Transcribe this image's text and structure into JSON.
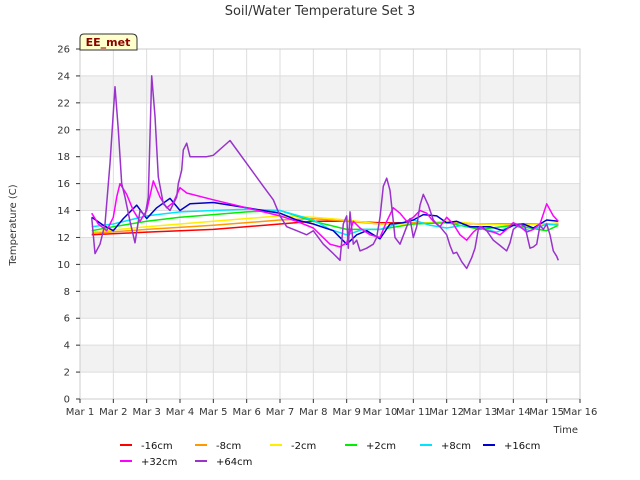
{
  "chart_data": {
    "type": "line",
    "title": "Soil/Water Temperature Set 3",
    "xlabel": "Time",
    "ylabel": "Temperature (C)",
    "ylim": [
      0,
      26
    ],
    "xlim": [
      1,
      16
    ],
    "yticks": [
      0,
      2,
      4,
      6,
      8,
      10,
      12,
      14,
      16,
      18,
      20,
      22,
      24,
      26
    ],
    "xticks": [
      {
        "v": 1,
        "label": "Mar 1"
      },
      {
        "v": 2,
        "label": "Mar 2"
      },
      {
        "v": 3,
        "label": "Mar 3"
      },
      {
        "v": 4,
        "label": "Mar 4"
      },
      {
        "v": 5,
        "label": "Mar 5"
      },
      {
        "v": 6,
        "label": "Mar 6"
      },
      {
        "v": 7,
        "label": "Mar 7"
      },
      {
        "v": 8,
        "label": "Mar 8"
      },
      {
        "v": 9,
        "label": "Mar 9"
      },
      {
        "v": 10,
        "label": "Mar 10"
      },
      {
        "v": 11,
        "label": "Mar 11"
      },
      {
        "v": 12,
        "label": "Mar 12"
      },
      {
        "v": 13,
        "label": "Mar 13"
      },
      {
        "v": 14,
        "label": "Mar 14"
      },
      {
        "v": 15,
        "label": "Mar 15"
      },
      {
        "v": 16,
        "label": "Mar 16"
      }
    ],
    "badge": "EE_met",
    "series": [
      {
        "name": "-16cm",
        "color": "#ff0000",
        "x": [
          1.35,
          3,
          5,
          7,
          8,
          9,
          10,
          11,
          12,
          13,
          14,
          15,
          15.35
        ],
        "y": [
          12.2,
          12.4,
          12.6,
          13.0,
          13.2,
          13.2,
          13.1,
          13.1,
          13.1,
          13.0,
          13.0,
          13.0,
          13.0
        ]
      },
      {
        "name": "-8cm",
        "color": "#ff9900",
        "x": [
          1.35,
          3,
          5,
          7,
          8,
          9,
          10,
          11,
          12,
          13,
          14,
          15,
          15.35
        ],
        "y": [
          12.3,
          12.6,
          12.9,
          13.3,
          13.4,
          13.2,
          13.0,
          13.1,
          13.1,
          13.0,
          13.0,
          13.0,
          13.0
        ]
      },
      {
        "name": "-2cm",
        "color": "#ffee00",
        "x": [
          1.35,
          3,
          5,
          7,
          8,
          9,
          10,
          11,
          12,
          13,
          14,
          15,
          15.35
        ],
        "y": [
          12.4,
          12.8,
          13.2,
          13.6,
          13.5,
          13.3,
          13.0,
          13.0,
          13.2,
          13.0,
          12.9,
          13.0,
          13.1
        ]
      },
      {
        "name": "+2cm",
        "color": "#00ee00",
        "x": [
          1.35,
          2,
          3,
          4,
          5,
          6,
          7,
          8,
          9,
          10,
          11,
          12,
          13,
          14,
          15,
          15.35
        ],
        "y": [
          12.5,
          12.8,
          13.2,
          13.5,
          13.7,
          13.9,
          14.0,
          13.2,
          12.6,
          12.6,
          13.0,
          13.1,
          12.6,
          12.9,
          12.5,
          12.9
        ]
      },
      {
        "name": "+8cm",
        "color": "#00e5ff",
        "x": [
          1.35,
          2,
          3,
          4,
          5,
          6,
          7,
          8,
          8.5,
          9,
          9.5,
          10,
          10.5,
          11,
          11.5,
          12,
          12.5,
          13,
          13.5,
          14,
          14.5,
          15,
          15.35
        ],
        "y": [
          12.8,
          13.0,
          13.6,
          13.9,
          14.0,
          14.1,
          14.0,
          13.3,
          12.6,
          12.2,
          12.6,
          12.6,
          13.0,
          13.3,
          12.9,
          12.7,
          12.9,
          12.7,
          12.4,
          12.9,
          12.5,
          13.0,
          12.9
        ]
      },
      {
        "name": "+16cm",
        "color": "#0000cc",
        "x": [
          1.35,
          1.7,
          2,
          2.3,
          2.7,
          3,
          3.3,
          3.7,
          4,
          4.3,
          5,
          6,
          7,
          7.5,
          8,
          8.6,
          9,
          9.3,
          9.6,
          10,
          10.3,
          10.7,
          11,
          11.3,
          11.7,
          12,
          12.3,
          12.7,
          13,
          13.3,
          13.7,
          14,
          14.3,
          14.6,
          15,
          15.35
        ],
        "y": [
          13.5,
          12.9,
          12.5,
          13.4,
          14.4,
          13.4,
          14.2,
          14.9,
          14.0,
          14.5,
          14.6,
          14.2,
          13.8,
          13.3,
          13.0,
          12.5,
          11.5,
          12.2,
          12.5,
          11.9,
          13.0,
          13.1,
          13.3,
          13.7,
          13.6,
          13.1,
          13.2,
          12.8,
          12.8,
          12.8,
          12.5,
          12.9,
          13.0,
          12.7,
          13.3,
          13.2
        ]
      },
      {
        "name": "+32cm",
        "color": "#ff00ff",
        "x": [
          1.35,
          1.55,
          1.8,
          2.0,
          2.1,
          2.2,
          2.4,
          2.6,
          2.8,
          3.0,
          3.2,
          3.4,
          3.6,
          3.8,
          4.0,
          4.2,
          5.0,
          6.0,
          7.0,
          7.5,
          8.0,
          8.5,
          8.8,
          9.0,
          9.2,
          9.4,
          9.7,
          10.0,
          10.2,
          10.4,
          10.6,
          10.8,
          11.0,
          11.2,
          11.4,
          11.6,
          11.8,
          12.0,
          12.2,
          12.4,
          12.6,
          12.8,
          13.0,
          13.2,
          13.4,
          13.6,
          13.8,
          14.0,
          14.2,
          14.4,
          14.6,
          14.8,
          15.0,
          15.2,
          15.35
        ],
        "y": [
          13.8,
          13.0,
          12.5,
          13.5,
          15.0,
          16.0,
          15.2,
          14.0,
          13.2,
          14.0,
          16.2,
          15.0,
          14.2,
          14.6,
          15.7,
          15.3,
          14.8,
          14.2,
          13.6,
          13.2,
          12.7,
          11.5,
          11.3,
          11.6,
          13.2,
          12.7,
          12.2,
          12.0,
          13.2,
          14.2,
          13.8,
          13.2,
          13.5,
          14.0,
          13.8,
          13.2,
          12.8,
          13.5,
          13.0,
          12.2,
          11.8,
          12.4,
          12.8,
          12.5,
          12.4,
          12.2,
          12.6,
          13.1,
          12.8,
          12.4,
          12.6,
          13.0,
          14.5,
          13.6,
          13.2
        ]
      },
      {
        "name": "+64cm",
        "color": "#9933cc",
        "x": [
          1.35,
          1.45,
          1.6,
          1.75,
          1.9,
          2.05,
          2.15,
          2.25,
          2.35,
          2.5,
          2.65,
          2.8,
          2.95,
          3.05,
          3.15,
          3.25,
          3.35,
          3.5,
          3.7,
          3.9,
          3.95,
          4.0,
          4.05,
          4.1,
          4.2,
          4.3,
          4.5,
          4.8,
          5.0,
          5.5,
          6.0,
          6.5,
          6.8,
          7.0,
          7.2,
          7.5,
          7.8,
          8.0,
          8.3,
          8.6,
          8.8,
          8.9,
          9.0,
          9.05,
          9.1,
          9.2,
          9.3,
          9.4,
          9.6,
          9.8,
          9.9,
          10.0,
          10.1,
          10.2,
          10.3,
          10.45,
          10.6,
          10.8,
          10.9,
          11.0,
          11.1,
          11.2,
          11.3,
          11.45,
          11.6,
          11.7,
          11.8,
          11.9,
          12.0,
          12.1,
          12.2,
          12.3,
          12.45,
          12.6,
          12.75,
          12.85,
          12.95,
          13.05,
          13.2,
          13.4,
          13.6,
          13.8,
          13.9,
          14.0,
          14.1,
          14.2,
          14.35,
          14.5,
          14.6,
          14.7,
          14.8,
          14.9,
          15.0,
          15.1,
          15.2,
          15.3,
          15.35
        ],
        "y": [
          13.5,
          10.8,
          11.5,
          13.0,
          17.5,
          23.2,
          20.0,
          16.0,
          15.0,
          13.2,
          11.6,
          14.0,
          13.6,
          15.0,
          24.0,
          21.0,
          16.5,
          14.5,
          14.0,
          15.0,
          16.0,
          16.5,
          17.0,
          18.5,
          19.0,
          18.0,
          18.0,
          18.0,
          18.1,
          19.2,
          17.5,
          15.8,
          14.8,
          13.6,
          12.8,
          12.5,
          12.2,
          12.5,
          11.5,
          10.8,
          10.3,
          13.0,
          13.6,
          11.2,
          13.9,
          11.5,
          11.8,
          11.0,
          11.2,
          11.5,
          12.0,
          13.5,
          15.8,
          16.4,
          15.5,
          12.0,
          11.5,
          12.8,
          13.4,
          12.0,
          12.8,
          14.4,
          15.2,
          14.4,
          13.3,
          13.0,
          12.8,
          12.5,
          12.2,
          11.4,
          10.8,
          10.9,
          10.2,
          9.7,
          10.5,
          11.2,
          12.6,
          12.8,
          12.5,
          11.8,
          11.4,
          11.0,
          11.6,
          12.6,
          12.8,
          13.0,
          12.8,
          11.2,
          11.3,
          11.5,
          12.9,
          12.6,
          13.0,
          12.2,
          11.0,
          10.6,
          10.3
        ]
      }
    ]
  }
}
